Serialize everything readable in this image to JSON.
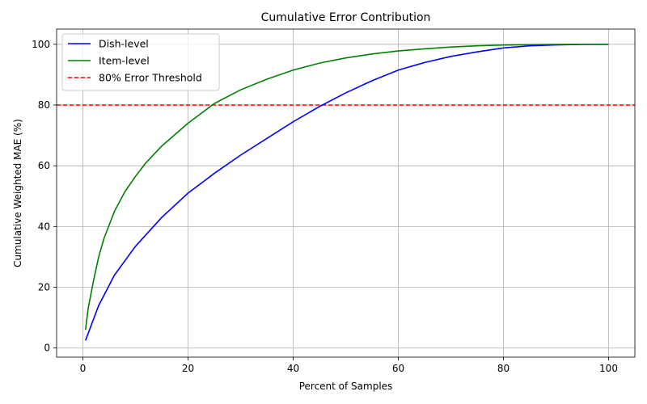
{
  "chart_data": {
    "type": "line",
    "title": "Cumulative Error Contribution",
    "xlabel": "Percent of Samples",
    "ylabel": "Cumulative Weighted MAE (%)",
    "xlim": [
      -5,
      105
    ],
    "ylim": [
      -3,
      105
    ],
    "xticks": [
      0,
      20,
      40,
      60,
      80,
      100
    ],
    "yticks": [
      0,
      20,
      40,
      60,
      80,
      100
    ],
    "grid": true,
    "legend_position": "top-left",
    "series": [
      {
        "name": "Dish-level",
        "color": "#0000ff",
        "x": [
          0.5,
          3,
          6,
          10,
          15,
          20,
          25,
          30,
          35,
          40,
          45,
          50,
          55,
          60,
          65,
          70,
          75,
          80,
          85,
          90,
          95,
          100
        ],
        "y": [
          2.5,
          14,
          24,
          33.5,
          43,
          51,
          57.5,
          63.5,
          69,
          74.5,
          79.5,
          84,
          88,
          91.5,
          94,
          96,
          97.5,
          98.8,
          99.5,
          99.8,
          99.95,
          100
        ]
      },
      {
        "name": "Item-level",
        "color": "#008000",
        "x": [
          0.5,
          1,
          2,
          3,
          4,
          6,
          8,
          10,
          12,
          15,
          20,
          25,
          30,
          35,
          40,
          45,
          50,
          55,
          60,
          65,
          70,
          75,
          80,
          85,
          90,
          95,
          100
        ],
        "y": [
          6,
          13,
          22,
          30,
          36,
          45,
          51.5,
          56.5,
          61,
          66.5,
          74,
          80.5,
          85,
          88.5,
          91.5,
          93.8,
          95.5,
          96.8,
          97.8,
          98.5,
          99.1,
          99.5,
          99.75,
          99.88,
          99.95,
          99.98,
          100
        ]
      }
    ],
    "threshold": {
      "name": "80% Error Threshold",
      "y": 80,
      "color": "#ff0000"
    }
  }
}
